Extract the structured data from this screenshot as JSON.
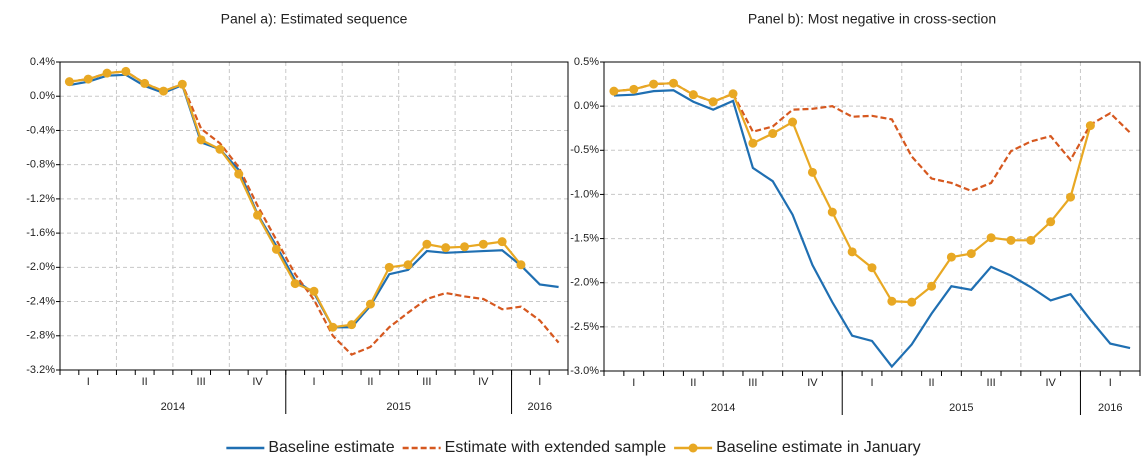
{
  "chart_data": [
    {
      "type": "line",
      "title": "Panel a): Estimated sequence",
      "categories": [
        null,
        "I",
        null,
        null,
        "II",
        null,
        null,
        "III",
        null,
        null,
        "IV",
        null,
        null,
        "I",
        null,
        null,
        "II",
        null,
        null,
        "III",
        null,
        null,
        "IV",
        null,
        null,
        "I",
        null
      ],
      "category_groups": [
        {
          "label": "2014",
          "size": 12
        },
        {
          "label": "2015",
          "size": 12
        },
        {
          "label": "2016",
          "size": 3
        }
      ],
      "ylim": [
        -3.2,
        0.4
      ],
      "yticks": [
        {
          "value": -3.2,
          "label": "-3.2%"
        },
        {
          "value": -2.8,
          "label": "-2.8%"
        },
        {
          "value": -2.4,
          "label": "-2.4%"
        },
        {
          "value": -2.0,
          "label": "-2.0%"
        },
        {
          "value": -1.6,
          "label": "-1.6%"
        },
        {
          "value": -1.2,
          "label": "-1.2%"
        },
        {
          "value": -0.8,
          "label": "-0.8%"
        },
        {
          "value": -0.4,
          "label": "-0.4%"
        },
        {
          "value": 0.0,
          "label": "0.0%"
        },
        {
          "value": 0.4,
          "label": "0.4%"
        }
      ],
      "grid": true,
      "series": [
        {
          "name": "Baseline estimate",
          "color": "#1f6fb2",
          "line_style": "solid",
          "marker": "none",
          "values": [
            0.13,
            0.17,
            0.24,
            0.25,
            0.12,
            0.04,
            0.13,
            -0.54,
            -0.62,
            -0.86,
            -1.38,
            -1.75,
            -2.15,
            -2.3,
            -2.7,
            -2.7,
            -2.45,
            -2.08,
            -2.03,
            -1.81,
            -1.83,
            -1.82,
            -1.81,
            -1.8,
            -1.98,
            -2.2,
            -2.23
          ]
        },
        {
          "name": "Estimate with extended sample",
          "color": "#d6581f",
          "line_style": "dashed",
          "marker": "none",
          "values": [
            0.17,
            0.2,
            0.27,
            0.29,
            0.15,
            0.06,
            0.14,
            -0.38,
            -0.55,
            -0.83,
            -1.28,
            -1.68,
            -2.08,
            -2.38,
            -2.8,
            -3.02,
            -2.93,
            -2.7,
            -2.53,
            -2.37,
            -2.3,
            -2.34,
            -2.37,
            -2.49,
            -2.46,
            -2.62,
            -2.88
          ]
        },
        {
          "name": "Baseline estimate in January",
          "color": "#e8a823",
          "line_style": "solid",
          "marker": "circle",
          "values": [
            0.17,
            0.2,
            0.27,
            0.29,
            0.15,
            0.06,
            0.14,
            -0.51,
            -0.62,
            -0.91,
            -1.39,
            -1.79,
            -2.19,
            -2.28,
            -2.7,
            -2.67,
            -2.43,
            -2.0,
            -1.97,
            -1.73,
            -1.77,
            -1.76,
            -1.73,
            -1.7,
            -1.97,
            null,
            null
          ]
        }
      ]
    },
    {
      "type": "line",
      "title": "Panel b): Most negative in cross-section",
      "categories": [
        null,
        "I",
        null,
        null,
        "II",
        null,
        null,
        "III",
        null,
        null,
        "IV",
        null,
        null,
        "I",
        null,
        null,
        "II",
        null,
        null,
        "III",
        null,
        null,
        "IV",
        null,
        null,
        "I",
        null
      ],
      "category_groups": [
        {
          "label": "2014",
          "size": 12
        },
        {
          "label": "2015",
          "size": 12
        },
        {
          "label": "2016",
          "size": 3
        }
      ],
      "ylim": [
        -3.0,
        0.5
      ],
      "yticks": [
        {
          "value": -3.0,
          "label": "-3.0%"
        },
        {
          "value": -2.5,
          "label": "-2.5%"
        },
        {
          "value": -2.0,
          "label": "-2.0%"
        },
        {
          "value": -1.5,
          "label": "-1.5%"
        },
        {
          "value": -1.0,
          "label": "-1.0%"
        },
        {
          "value": -0.5,
          "label": "-0.5%"
        },
        {
          "value": 0.0,
          "label": "0.0%"
        },
        {
          "value": 0.5,
          "label": "0.5%"
        }
      ],
      "grid": true,
      "series": [
        {
          "color": "#1f6fb2",
          "line_style": "solid",
          "marker": "none",
          "values": [
            0.12,
            0.13,
            0.17,
            0.18,
            0.05,
            -0.04,
            0.06,
            -0.7,
            -0.85,
            -1.23,
            -1.8,
            -2.22,
            -2.6,
            -2.66,
            -2.95,
            -2.7,
            -2.35,
            -2.04,
            -2.08,
            -1.82,
            -1.92,
            -2.05,
            -2.2,
            -2.13,
            -2.42,
            -2.69,
            -2.74
          ]
        },
        {
          "color": "#d6581f",
          "line_style": "dashed",
          "marker": "none",
          "values": [
            0.17,
            0.19,
            0.25,
            0.26,
            0.13,
            0.05,
            0.14,
            -0.29,
            -0.23,
            -0.04,
            -0.03,
            0.0,
            -0.12,
            -0.11,
            -0.15,
            -0.57,
            -0.82,
            -0.87,
            -0.96,
            -0.87,
            -0.51,
            -0.4,
            -0.34,
            -0.61,
            -0.21,
            -0.08,
            -0.3
          ]
        },
        {
          "color": "#e8a823",
          "line_style": "solid",
          "marker": "circle",
          "values": [
            0.17,
            0.19,
            0.25,
            0.26,
            0.13,
            0.05,
            0.14,
            -0.42,
            -0.31,
            -0.18,
            -0.75,
            -1.2,
            -1.65,
            -1.83,
            -2.21,
            -2.22,
            -2.04,
            -1.71,
            -1.67,
            -1.49,
            -1.52,
            -1.52,
            -1.31,
            -1.03,
            -0.22,
            null,
            null
          ]
        }
      ]
    }
  ]
}
